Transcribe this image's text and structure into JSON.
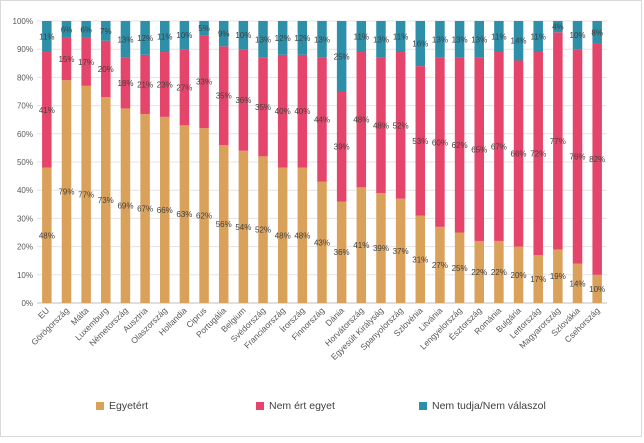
{
  "chart_data": {
    "type": "bar",
    "stacked": true,
    "orientation": "vertical",
    "ylim": [
      0,
      100
    ],
    "yticks": [
      "0%",
      "10%",
      "20%",
      "30%",
      "40%",
      "50%",
      "60%",
      "70%",
      "80%",
      "90%",
      "100%"
    ],
    "grid": true,
    "legend_position": "bottom",
    "categories": [
      "EU",
      "Görögország",
      "Málta",
      "Luxemburg",
      "Németország",
      "Ausztria",
      "Olaszország",
      "Hollandia",
      "Ciprus",
      "Portugália",
      "Belgium",
      "Svédország",
      "Franciaország",
      "Írország",
      "Finnország",
      "Dánia",
      "Horvátország",
      "Egyesült Királyság",
      "Spanyolország",
      "Szlovénia",
      "Litvánia",
      "Lengyelország",
      "Észtország",
      "Románia",
      "Bulgária",
      "Lettország",
      "Magyarország",
      "Szlovákia",
      "Csehország"
    ],
    "series": [
      {
        "name": "Egyetért",
        "color": "#D9A15A",
        "values": [
          48,
          79,
          77,
          73,
          69,
          67,
          66,
          63,
          62,
          56,
          54,
          52,
          48,
          48,
          43,
          36,
          41,
          39,
          37,
          31,
          27,
          25,
          22,
          22,
          20,
          17,
          19,
          14,
          10
        ],
        "labels": [
          "48%",
          "79%",
          "77%",
          "73%",
          "69%",
          "67%",
          "66%",
          "63%",
          "62%",
          "56%",
          "54%",
          "52%",
          "48%",
          "48%",
          "43%",
          "36%",
          "41%",
          "39%",
          "37%",
          "31%",
          "27%",
          "25%",
          "22%",
          "22%",
          "20%",
          "17%",
          "19%",
          "14%",
          "10%"
        ]
      },
      {
        "name": "Nem ért egyet",
        "color": "#E5456A",
        "values": [
          41,
          15,
          17,
          20,
          18,
          21,
          23,
          27,
          33,
          35,
          36,
          35,
          40,
          40,
          44,
          39,
          48,
          48,
          52,
          53,
          60,
          62,
          65,
          67,
          66,
          72,
          77,
          76,
          82
        ],
        "labels": [
          "41%",
          "15%",
          "17%",
          "20%",
          "18%",
          "21%",
          "23%",
          "27%",
          "33%",
          "35%",
          "36%",
          "35%",
          "40%",
          "40%",
          "44%",
          "39%",
          "48%",
          "48%",
          "52%",
          "53%",
          "60%",
          "62%",
          "65%",
          "67%",
          "66%",
          "72%",
          "77%",
          "76%",
          "82%"
        ]
      },
      {
        "name": "Nem tudja/Nem válaszol",
        "color": "#2E8FA8",
        "values": [
          11,
          6,
          6,
          7,
          13,
          12,
          11,
          10,
          5,
          9,
          10,
          13,
          12,
          12,
          13,
          25,
          11,
          13,
          11,
          16,
          13,
          13,
          13,
          11,
          14,
          11,
          4,
          10,
          8
        ],
        "labels": [
          "11%",
          "6%",
          "6%",
          "7%",
          "13%",
          "12%",
          "11%",
          "10%",
          "5%",
          "9%",
          "10%",
          "13%",
          "12%",
          "12%",
          "13%",
          "25%",
          "11%",
          "13%",
          "11%",
          "16%",
          "13%",
          "13%",
          "13%",
          "11%",
          "14%",
          "11%",
          "4%",
          "10%",
          "8%"
        ]
      }
    ]
  }
}
